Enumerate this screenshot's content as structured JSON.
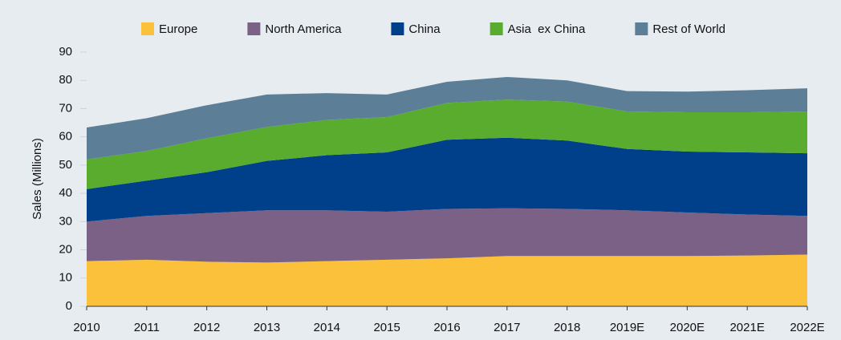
{
  "chart_data": {
    "type": "stacked_area",
    "ylabel": "Sales (Millions)",
    "categories": [
      "2010",
      "2011",
      "2012",
      "2013",
      "2014",
      "2015",
      "2016",
      "2017",
      "2018",
      "2019E",
      "2020E",
      "2021E",
      "2022E"
    ],
    "series": [
      {
        "name": "Europe",
        "color": "#fbc13a",
        "values": [
          16,
          16.5,
          15.8,
          15.5,
          16,
          16.5,
          17,
          17.8,
          17.8,
          17.8,
          17.8,
          18,
          18.3
        ]
      },
      {
        "name": "North America",
        "color": "#7b6186",
        "values": [
          14,
          15.5,
          17.2,
          18.5,
          18,
          17,
          17.5,
          16.9,
          16.7,
          16.2,
          15.4,
          14.5,
          13.7
        ]
      },
      {
        "name": "China",
        "color": "#003f8a",
        "values": [
          11.5,
          12.5,
          14.5,
          17.5,
          19.5,
          21,
          24.5,
          25,
          24.2,
          21.7,
          21.6,
          22,
          22.2
        ]
      },
      {
        "name": "Asia  ex China",
        "color": "#5aac2e",
        "values": [
          10.5,
          10.5,
          12,
          12,
          12.5,
          12.5,
          13,
          13.5,
          13.8,
          13.3,
          13.9,
          14.2,
          14.8
        ]
      },
      {
        "name": "Rest of World",
        "color": "#5c7f97",
        "values": [
          11.3,
          11.6,
          11.7,
          11.5,
          9.5,
          8,
          7.5,
          8,
          7.5,
          7.2,
          7.3,
          7.8,
          8.2
        ]
      }
    ],
    "ylim": [
      0,
      90
    ],
    "yticks": [
      0,
      10,
      20,
      30,
      40,
      50,
      60,
      70,
      80,
      90
    ],
    "grid": false,
    "legend": "top"
  }
}
